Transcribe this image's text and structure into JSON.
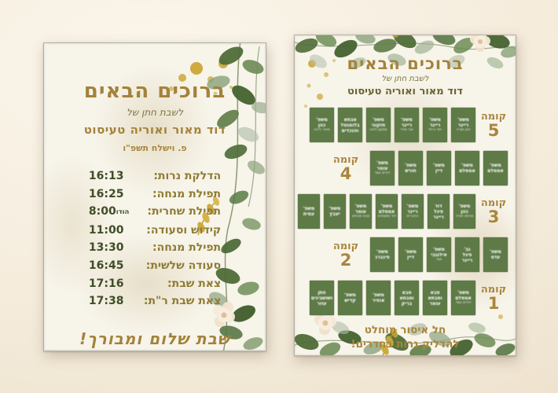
{
  "left_card": {
    "title": "ברוכים הבאים",
    "subtitle": "לשבת חתן של",
    "names": "דוד מאור ואוריה טעיסוט",
    "parsha": "פ. וישלח תשפ\"ו",
    "schedule": [
      {
        "label": "הדלקת נרות:",
        "time": "16:13",
        "note": ""
      },
      {
        "label": "תפילת מנחה:",
        "time": "16:25",
        "note": ""
      },
      {
        "label": "תפילת שחרית:",
        "time": "8:00",
        "note": "הודו"
      },
      {
        "label": "קידוש וסעודה:",
        "time": "11:00",
        "note": ""
      },
      {
        "label": "תפילת מנחה:",
        "time": "13:30",
        "note": ""
      },
      {
        "label": "סעודה שלשית:",
        "time": "16:45",
        "note": ""
      },
      {
        "label": "צאת שבת:",
        "time": "17:16",
        "note": ""
      },
      {
        "label": "צאת שבת ר\"ת:",
        "time": "17:38",
        "note": ""
      }
    ],
    "blessing": "שבת שלום ומבורך!"
  },
  "right_card": {
    "title": "ברוכים הבאים",
    "subtitle": "לשבת חתן של",
    "names": "דוד מאור ואוריה טעיסוט",
    "floor_word": "קומה",
    "floors": [
      {
        "number": "5",
        "side": "right",
        "rooms": [
          {
            "lines": [
              "משפ'",
              "ריינר"
            ],
            "sub": "ציון ושרה"
          },
          {
            "lines": [
              "משפ'",
              "ריינר"
            ],
            "sub": "יוסי ורחל"
          },
          {
            "lines": [
              "משפ'",
              "ריינר"
            ],
            "sub": "אבי ומירי"
          },
          {
            "lines": [
              "משפ'",
              "חזקוני"
            ],
            "sub": "שמעון ולאה"
          },
          {
            "lines": [
              "סבתא",
              "בלומנטל",
              "והנכדים"
            ],
            "sub": ""
          },
          {
            "lines": [
              "משפ'",
              "כהן"
            ],
            "sub": "מאיר ודינה"
          }
        ]
      },
      {
        "number": "4",
        "side": "left",
        "rooms": [
          {
            "lines": [
              "משפ'",
              "אמסלם"
            ],
            "sub": ""
          },
          {
            "lines": [
              "משפ'",
              "אמסלם"
            ],
            "sub": ""
          },
          {
            "lines": [
              "משפ'",
              "דיין"
            ],
            "sub": ""
          },
          {
            "lines": [
              "משפ'",
              "חורש"
            ],
            "sub": ""
          },
          {
            "lines": [
              "משפ'",
              "עומר"
            ],
            "sub": "דודים ועוד"
          }
        ]
      },
      {
        "number": "3",
        "side": "right",
        "rooms": [
          {
            "lines": [
              "משפ'",
              "כהן"
            ],
            "sub": "סבתא ושרה"
          },
          {
            "lines": [
              "דוד",
              "פיגל",
              "ריינר"
            ],
            "sub": ""
          },
          {
            "lines": [
              "משפ'",
              "ריינר"
            ],
            "sub": "החברים"
          },
          {
            "lines": [
              "משפ'",
              "אמסלם"
            ],
            "sub": "דוד ומשפחה"
          },
          {
            "lines": [
              "משפ'",
              "עומר"
            ],
            "sub": "סבא וסבתא"
          },
          {
            "lines": [
              "משפ'",
              "יעבץ"
            ],
            "sub": ""
          },
          {
            "lines": [
              "משפ'",
              "עמית"
            ],
            "sub": ""
          }
        ]
      },
      {
        "number": "2",
        "side": "left",
        "rooms": [
          {
            "lines": [
              "משפ'",
              "עדס"
            ],
            "sub": ""
          },
          {
            "lines": [
              "גב'",
              "פיגל",
              "ריינר"
            ],
            "sub": ""
          },
          {
            "lines": [
              "משפ'",
              "אילנגבי"
            ],
            "sub": "ועוד"
          },
          {
            "lines": [
              "משפ'",
              "דיין"
            ],
            "sub": ""
          },
          {
            "lines": [
              "משפ'",
              "פינברג"
            ],
            "sub": ""
          }
        ]
      },
      {
        "number": "1",
        "side": "right",
        "rooms": [
          {
            "lines": [
              "משפ'",
              "אמסלם"
            ],
            "sub": "דודים ועוד"
          },
          {
            "lines": [
              "סבא",
              "וסבתא",
              "עומר"
            ],
            "sub": ""
          },
          {
            "lines": [
              "סבא",
              "וסבתא",
              "בריק"
            ],
            "sub": ""
          },
          {
            "lines": [
              "משפ'",
              "אופיר"
            ],
            "sub": ""
          },
          {
            "lines": [
              "משפ'",
              "קדיש"
            ],
            "sub": ""
          },
          {
            "lines": [
              "חתן",
              "ושושבינים",
              "עוזר"
            ],
            "sub": ""
          }
        ]
      }
    ],
    "warning_line1": "חל איסור מוחלט",
    "warning_line2": "להדליק נרות בחדרים!"
  }
}
